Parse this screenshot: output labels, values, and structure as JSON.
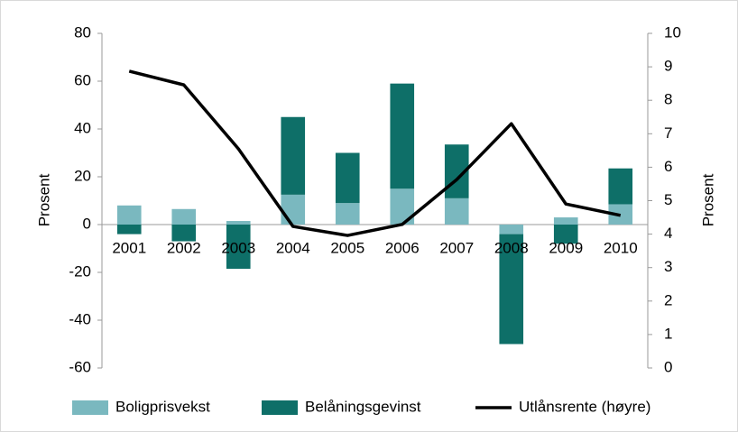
{
  "chart_data": {
    "type": "bar",
    "categories": [
      "2001",
      "2002",
      "2003",
      "2004",
      "2005",
      "2006",
      "2007",
      "2008",
      "2009",
      "2010"
    ],
    "series": [
      {
        "name": "Boligprisvekst",
        "color": "#7ab8bf",
        "values": [
          8,
          6.5,
          1.5,
          12.5,
          9,
          15,
          11,
          -4,
          3,
          8.5
        ]
      },
      {
        "name": "Belåningsgevinst",
        "color": "#0e6f68",
        "values": [
          -4,
          -7,
          -18.5,
          32.5,
          21,
          44,
          22.5,
          -46,
          -8,
          15
        ]
      },
      {
        "name": "Utlånsrente (høyre)",
        "color": "#000000",
        "type": "line",
        "axis": "y2",
        "values": [
          8.87,
          8.46,
          6.55,
          4.23,
          3.96,
          4.29,
          5.63,
          7.3,
          4.9,
          4.56
        ]
      }
    ],
    "ylabel": "Prosent",
    "y2label": "Prosent",
    "ylim": [
      -60,
      80
    ],
    "yticks": [
      -60,
      -40,
      -20,
      0,
      20,
      40,
      60,
      80
    ],
    "y2lim": [
      0,
      10
    ],
    "y2ticks": [
      0,
      1,
      2,
      3,
      4,
      5,
      6,
      7,
      8,
      9,
      10
    ],
    "stacked": true,
    "grid": false,
    "legend": "bottom"
  }
}
